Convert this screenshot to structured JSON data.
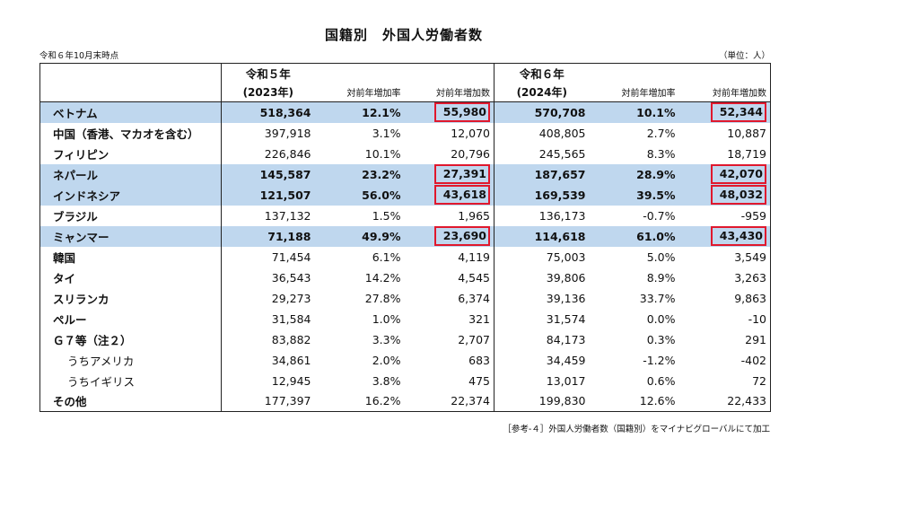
{
  "title": "国籍別　外国人労働者数",
  "as_of": "令和６年10月末時点",
  "unit": "（単位：人）",
  "header": {
    "group1": "令和５年",
    "group2": "令和６年",
    "year1": "(2023年)",
    "year2": "(2024年)",
    "rate": "対前年増加率",
    "diff": "対前年増加数"
  },
  "rows": [
    {
      "name": "ベトナム",
      "y2023": "518,364",
      "r2023": "12.1%",
      "d2023": "55,980",
      "y2024": "570,708",
      "r2024": "10.1%",
      "d2024": "52,344",
      "highlight": true
    },
    {
      "name": "中国（香港、マカオを含む）",
      "y2023": "397,918",
      "r2023": "3.1%",
      "d2023": "12,070",
      "y2024": "408,805",
      "r2024": "2.7%",
      "d2024": "10,887",
      "highlight": false
    },
    {
      "name": "フィリピン",
      "y2023": "226,846",
      "r2023": "10.1%",
      "d2023": "20,796",
      "y2024": "245,565",
      "r2024": "8.3%",
      "d2024": "18,719",
      "highlight": false
    },
    {
      "name": "ネパール",
      "y2023": "145,587",
      "r2023": "23.2%",
      "d2023": "27,391",
      "y2024": "187,657",
      "r2024": "28.9%",
      "d2024": "42,070",
      "highlight": true
    },
    {
      "name": "インドネシア",
      "y2023": "121,507",
      "r2023": "56.0%",
      "d2023": "43,618",
      "y2024": "169,539",
      "r2024": "39.5%",
      "d2024": "48,032",
      "highlight": true
    },
    {
      "name": "ブラジル",
      "y2023": "137,132",
      "r2023": "1.5%",
      "d2023": "1,965",
      "y2024": "136,173",
      "r2024": "-0.7%",
      "d2024": "-959",
      "highlight": false
    },
    {
      "name": "ミャンマー",
      "y2023": "71,188",
      "r2023": "49.9%",
      "d2023": "23,690",
      "y2024": "114,618",
      "r2024": "61.0%",
      "d2024": "43,430",
      "highlight": true
    },
    {
      "name": "韓国",
      "y2023": "71,454",
      "r2023": "6.1%",
      "d2023": "4,119",
      "y2024": "75,003",
      "r2024": "5.0%",
      "d2024": "3,549",
      "highlight": false
    },
    {
      "name": "タイ",
      "y2023": "36,543",
      "r2023": "14.2%",
      "d2023": "4,545",
      "y2024": "39,806",
      "r2024": "8.9%",
      "d2024": "3,263",
      "highlight": false
    },
    {
      "name": "スリランカ",
      "y2023": "29,273",
      "r2023": "27.8%",
      "d2023": "6,374",
      "y2024": "39,136",
      "r2024": "33.7%",
      "d2024": "9,863",
      "highlight": false
    },
    {
      "name": "ペルー",
      "y2023": "31,584",
      "r2023": "1.0%",
      "d2023": "321",
      "y2024": "31,574",
      "r2024": "0.0%",
      "d2024": "-10",
      "highlight": false
    },
    {
      "name": "Ｇ７等（注２）",
      "y2023": "83,882",
      "r2023": "3.3%",
      "d2023": "2,707",
      "y2024": "84,173",
      "r2024": "0.3%",
      "d2024": "291",
      "highlight": false
    },
    {
      "name": "うちアメリカ",
      "y2023": "34,861",
      "r2023": "2.0%",
      "d2023": "683",
      "y2024": "34,459",
      "r2024": "-1.2%",
      "d2024": "-402",
      "highlight": false,
      "sub": true
    },
    {
      "name": "うちイギリス",
      "y2023": "12,945",
      "r2023": "3.8%",
      "d2023": "475",
      "y2024": "13,017",
      "r2024": "0.6%",
      "d2024": "72",
      "highlight": false,
      "sub": true
    },
    {
      "name": "その他",
      "y2023": "177,397",
      "r2023": "16.2%",
      "d2023": "22,374",
      "y2024": "199,830",
      "r2024": "12.6%",
      "d2024": "22,433",
      "highlight": false
    }
  ],
  "footnote": "［参考-４］外国人労働者数（国籍別）をマイナビグローバルにて加工",
  "colors": {
    "highlight": "#bfd7ee",
    "box": "#e0182d"
  }
}
